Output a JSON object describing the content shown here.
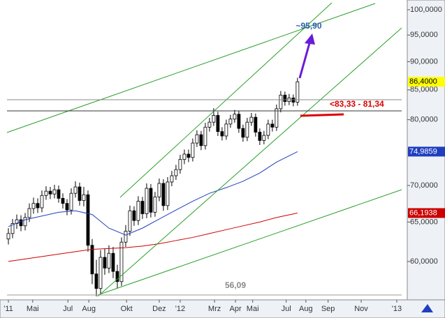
{
  "chart_data": {
    "type": "candlestick",
    "log_scale": true,
    "ylim": [
      55.5,
      102
    ],
    "yticks": [
      {
        "value": 100,
        "label": "100,0000"
      },
      {
        "value": 95,
        "label": "95,0000"
      },
      {
        "value": 90,
        "label": "90,0000"
      },
      {
        "value": 85,
        "label": "85,0000"
      },
      {
        "value": 80,
        "label": "80,0000"
      },
      {
        "value": 70,
        "label": "70,0000"
      },
      {
        "value": 65,
        "label": "65,0000"
      },
      {
        "value": 60,
        "label": "60,0000"
      }
    ],
    "xlim": [
      0,
      97.2
    ],
    "xticks": [
      {
        "value": 2,
        "label": "'11"
      },
      {
        "value": 7.8,
        "label": "Mai"
      },
      {
        "value": 16.2,
        "label": "Jul"
      },
      {
        "value": 21.2,
        "label": "Aug"
      },
      {
        "value": 30.2,
        "label": "Okt"
      },
      {
        "value": 38,
        "label": "Dez"
      },
      {
        "value": 43,
        "label": "'12"
      },
      {
        "value": 51.2,
        "label": "Mrz"
      },
      {
        "value": 56.2,
        "label": "Apr"
      },
      {
        "value": 60.3,
        "label": "Mai"
      },
      {
        "value": 68.3,
        "label": "Jul"
      },
      {
        "value": 73,
        "label": "Aug"
      },
      {
        "value": 78.3,
        "label": "Sep"
      },
      {
        "value": 86.2,
        "label": "Nov"
      },
      {
        "value": 94.7,
        "label": "'13"
      }
    ],
    "x": [
      2,
      3,
      4,
      5,
      6,
      7,
      8,
      9,
      10,
      11,
      12,
      13,
      14,
      15,
      16,
      17,
      18,
      19,
      20,
      21,
      22,
      23,
      24,
      25,
      26,
      27,
      28,
      29,
      30,
      31,
      32,
      33,
      34,
      35,
      36,
      37,
      38,
      39,
      40,
      41,
      42,
      43,
      44,
      45,
      46,
      47,
      48,
      49,
      50,
      51,
      52,
      53,
      54,
      55,
      56,
      57,
      58,
      59,
      60,
      61,
      62,
      63,
      64,
      65,
      66,
      67,
      68,
      69,
      70,
      71
    ],
    "open": [
      62.8,
      63.5,
      64.8,
      65.3,
      64.5,
      65.6,
      66.8,
      67.5,
      66.9,
      68.6,
      69.2,
      68.8,
      69.4,
      68.2,
      67.5,
      66.6,
      68.9,
      69.8,
      67.9,
      68.7,
      62.0,
      58.5,
      56.8,
      60.5,
      59.2,
      61.0,
      58.8,
      57.6,
      62.4,
      63.8,
      66.5,
      65.2,
      67.8,
      66.1,
      69.6,
      66.3,
      68.4,
      70.3,
      67.2,
      70.5,
      71.4,
      72.3,
      73.8,
      74.6,
      74.1,
      76.3,
      77.6,
      75.9,
      78.8,
      79.6,
      80.7,
      78.1,
      77.4,
      79.3,
      80.1,
      80.9,
      78.6,
      77.2,
      79.6,
      80.4,
      78.0,
      76.7,
      77.5,
      79.3,
      78.8,
      81.8,
      84.1,
      83.0,
      83.6,
      82.9
    ],
    "high": [
      64.2,
      65.4,
      66.0,
      65.9,
      66.2,
      67.5,
      68.3,
      68.2,
      69.3,
      69.9,
      69.8,
      70.1,
      70.0,
      68.9,
      68.1,
      69.6,
      70.6,
      70.4,
      69.8,
      69.3,
      62.8,
      60.2,
      61.4,
      61.6,
      62.0,
      61.8,
      59.6,
      63.0,
      64.6,
      67.2,
      67.1,
      68.5,
      68.4,
      70.3,
      70.2,
      69.1,
      71.0,
      70.9,
      71.2,
      72.1,
      73.0,
      74.5,
      75.3,
      75.3,
      77.0,
      78.3,
      78.2,
      79.5,
      80.3,
      81.9,
      81.3,
      78.8,
      80.0,
      80.8,
      81.6,
      81.5,
      79.2,
      80.3,
      81.1,
      81.0,
      78.6,
      78.2,
      80.0,
      80.0,
      82.5,
      84.8,
      84.7,
      84.3,
      84.2,
      87.1
    ],
    "low": [
      62.1,
      62.9,
      64.1,
      63.8,
      63.9,
      65.0,
      66.1,
      66.2,
      66.3,
      68.0,
      68.1,
      68.2,
      67.6,
      66.8,
      65.9,
      66.0,
      68.3,
      67.2,
      67.1,
      61.2,
      57.3,
      55.9,
      56.2,
      58.4,
      58.6,
      58.0,
      56.8,
      57.1,
      61.8,
      63.2,
      64.5,
      64.6,
      65.4,
      65.5,
      65.6,
      65.7,
      67.8,
      66.5,
      66.6,
      69.9,
      70.8,
      71.7,
      73.1,
      73.4,
      73.5,
      75.7,
      75.2,
      75.3,
      78.1,
      79.0,
      77.4,
      76.7,
      76.8,
      78.7,
      79.5,
      77.9,
      76.5,
      76.6,
      79.0,
      77.3,
      76.0,
      76.1,
      76.9,
      78.1,
      78.2,
      81.2,
      82.3,
      82.4,
      82.2,
      82.3
    ],
    "close": [
      63.5,
      64.8,
      65.3,
      64.5,
      65.6,
      66.8,
      67.5,
      66.9,
      68.6,
      69.2,
      68.8,
      69.4,
      68.2,
      67.5,
      66.6,
      68.9,
      69.8,
      67.9,
      68.7,
      62.0,
      58.5,
      56.8,
      60.5,
      59.2,
      61.0,
      58.8,
      57.6,
      62.4,
      63.8,
      66.5,
      65.2,
      67.8,
      66.1,
      69.6,
      66.3,
      68.4,
      70.3,
      67.2,
      70.5,
      71.4,
      72.3,
      73.8,
      74.6,
      74.1,
      76.3,
      77.6,
      75.9,
      78.8,
      79.6,
      80.7,
      78.1,
      77.4,
      79.3,
      80.1,
      80.9,
      78.6,
      77.2,
      79.6,
      80.4,
      78.0,
      76.7,
      77.5,
      79.3,
      78.8,
      81.8,
      84.1,
      83.0,
      83.6,
      82.9,
      86.4
    ],
    "last_label": {
      "value": 86.4,
      "label": "86,4000",
      "color": "#ffff00"
    },
    "series": [
      {
        "type": "line",
        "color": "#1f3fbf",
        "x": [
          2,
          6,
          10,
          14,
          18,
          22,
          26,
          30,
          34,
          38,
          42,
          46,
          50,
          54,
          58,
          62,
          66,
          71
        ],
        "values": [
          64.4,
          65.3,
          65.8,
          66.3,
          66.5,
          66.0,
          64.2,
          63.3,
          64.2,
          65.4,
          66.6,
          67.8,
          68.9,
          69.7,
          70.6,
          71.8,
          73.4,
          74.9859
        ],
        "end_label": "74,9859"
      },
      {
        "type": "line",
        "color": "#cc0000",
        "x": [
          2,
          6,
          10,
          14,
          18,
          22,
          26,
          30,
          34,
          38,
          42,
          46,
          50,
          54,
          58,
          62,
          66,
          71
        ],
        "values": [
          60.0,
          60.3,
          60.6,
          60.9,
          61.2,
          61.5,
          61.6,
          61.7,
          61.9,
          62.2,
          62.6,
          63.0,
          63.5,
          64.0,
          64.5,
          65.0,
          65.6,
          66.1938
        ],
        "end_label": "66,1938"
      }
    ],
    "annotations": [
      "~95,90",
      "<83,33 - 81,34",
      "56,09"
    ]
  }
}
